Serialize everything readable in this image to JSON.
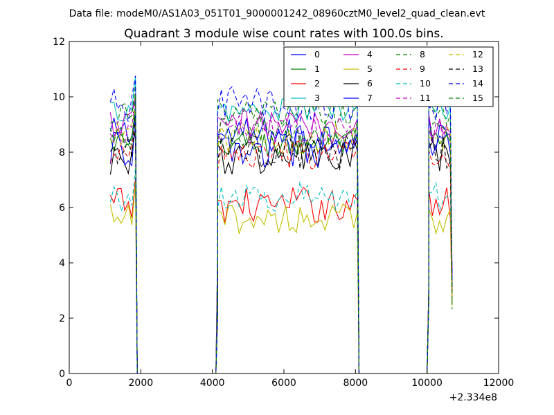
{
  "figure": {
    "suptitle": "Data file: modeM0/AS1A03_051T01_9000001242_08960cztM0_level2_quad_clean.evt",
    "background": "#ffffff"
  },
  "chart_data": {
    "type": "line",
    "title": "Quadrant 3 module wise count rates with 100.0s bins.",
    "xlabel": "",
    "ylabel": "",
    "xlim": [
      0,
      12000
    ],
    "ylim": [
      0,
      12
    ],
    "x_offset_label": "+2.334e8",
    "xticks": [
      0,
      2000,
      4000,
      6000,
      8000,
      10000,
      12000
    ],
    "xtick_labels": [
      "0",
      "2000",
      "4000",
      "6000",
      "8000",
      "10000",
      "12000"
    ],
    "yticks": [
      0,
      2,
      4,
      6,
      8,
      10,
      12
    ],
    "ytick_labels": [
      "0",
      "2",
      "4",
      "6",
      "8",
      "10",
      "12"
    ],
    "legend": {
      "location": "top-right",
      "columns": 4
    },
    "x_segments": [
      {
        "start": 1150,
        "end": 1850,
        "step": 100
      },
      {
        "start": 4150,
        "end": 8050,
        "step": 100
      },
      {
        "start": 10050,
        "end": 10650,
        "step": 100
      }
    ],
    "gaps": [
      [
        1900,
        4100
      ],
      [
        8100,
        10000
      ]
    ],
    "series": [
      {
        "name": "0",
        "color": "#0000ff",
        "dash": "solid",
        "level": 8.6,
        "jitter": 0.3
      },
      {
        "name": "1",
        "color": "#008000",
        "dash": "solid",
        "level": 8.3,
        "jitter": 0.25
      },
      {
        "name": "2",
        "color": "#ff0000",
        "dash": "solid",
        "level": 6.1,
        "jitter": 0.3
      },
      {
        "name": "3",
        "color": "#00bfbf",
        "dash": "solid",
        "level": 9.5,
        "jitter": 0.2
      },
      {
        "name": "4",
        "color": "#bf00bf",
        "dash": "solid",
        "level": 9.0,
        "jitter": 0.25
      },
      {
        "name": "5",
        "color": "#bfbf00",
        "dash": "solid",
        "level": 5.6,
        "jitter": 0.25
      },
      {
        "name": "6",
        "color": "#000000",
        "dash": "solid",
        "level": 7.8,
        "jitter": 0.3
      },
      {
        "name": "7",
        "color": "#0000ff",
        "dash": "solid",
        "level": 8.1,
        "jitter": 0.3
      },
      {
        "name": "8",
        "color": "#008000",
        "dash": "dashed",
        "level": 9.4,
        "jitter": 0.25
      },
      {
        "name": "9",
        "color": "#ff0000",
        "dash": "dashed",
        "level": 7.9,
        "jitter": 0.25
      },
      {
        "name": "10",
        "color": "#00bfbf",
        "dash": "dashed",
        "level": 6.4,
        "jitter": 0.25
      },
      {
        "name": "11",
        "color": "#bf00bf",
        "dash": "dashed",
        "level": 8.8,
        "jitter": 0.25
      },
      {
        "name": "12",
        "color": "#bfbf00",
        "dash": "dashed",
        "level": 8.5,
        "jitter": 0.25
      },
      {
        "name": "13",
        "color": "#000000",
        "dash": "dashed",
        "level": 8.0,
        "jitter": 0.3
      },
      {
        "name": "14",
        "color": "#0000ff",
        "dash": "dashed",
        "level": 9.7,
        "jitter": 0.3
      },
      {
        "name": "15",
        "color": "#008000",
        "dash": "dashed",
        "level": 8.7,
        "jitter": 0.25
      }
    ]
  }
}
